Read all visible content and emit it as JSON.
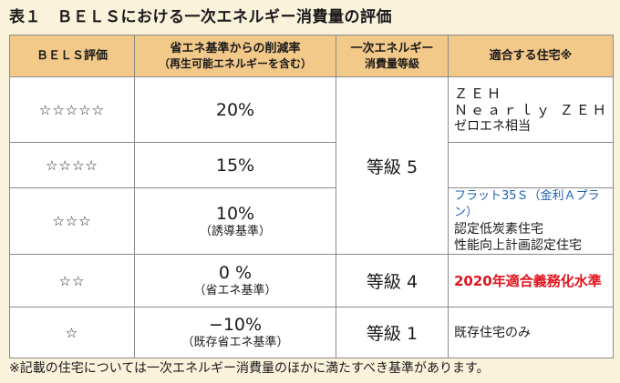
{
  "title": "表１　ＢＥＬＳにおける一次エネルギー消費量の評価",
  "headers": {
    "bels": "ＢＥＬＳ評価",
    "rate_main": "省エネ基準からの削減率",
    "rate_sub": "（再生可能エネルギーを含む）",
    "grade_main": "一次エネルギー",
    "grade_sub": "消費量等級",
    "house": "適合する住宅※"
  },
  "rows": [
    {
      "stars": "☆☆☆☆☆",
      "rate": "20%",
      "note": ""
    },
    {
      "stars": "☆☆☆☆",
      "rate": "15%",
      "note": ""
    },
    {
      "stars": "☆☆☆",
      "rate": "10%",
      "note": "（誘導基準）"
    },
    {
      "stars": "☆☆",
      "rate": "0 %",
      "note": "（省エネ基準）"
    },
    {
      "stars": "☆",
      "rate": "−10%",
      "note": "（既存省エネ基準）"
    }
  ],
  "grades": {
    "g5": "等級 5",
    "g4": "等級 4",
    "g1": "等級 1"
  },
  "houses": {
    "zeh": "ＺＥＨ",
    "nearly_zeh": "Ｎｅａｒｌｙ ＺＥＨ",
    "zero_energy": "ゼロエネ相当",
    "flat35": "フラット35Ｓ（金利Ａプラン）",
    "low_carbon": "認定低炭素住宅",
    "performance": "性能向上計画認定住宅",
    "mandatory_2020": "2020年適合義務化水準",
    "existing_only": "既存住宅のみ"
  },
  "colors": {
    "header_bg": "#f3c98a",
    "page_bg": "#fbf2dc",
    "flat35_blue": "#1f5fb0",
    "mandatory_red": "#e0141e"
  },
  "footnote": "※記載の住宅については一次エネルギー消費量のほかに満たすべき基準があります。"
}
